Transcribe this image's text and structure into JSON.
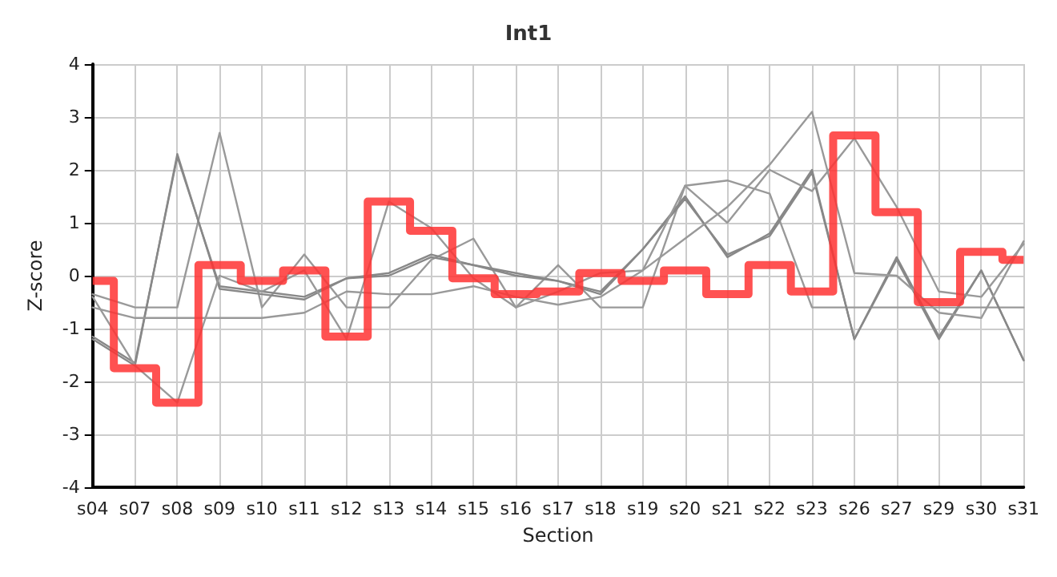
{
  "chart_data": {
    "type": "line",
    "title": "Int1",
    "xlabel": "Section",
    "ylabel": "Z-score",
    "categories": [
      "s04",
      "s07",
      "s08",
      "s09",
      "s10",
      "s11",
      "s12",
      "s13",
      "s14",
      "s15",
      "s16",
      "s17",
      "s18",
      "s19",
      "s20",
      "s21",
      "s22",
      "s23",
      "s26",
      "s27",
      "s29",
      "s30",
      "s31"
    ],
    "series": [
      {
        "color": "#999999",
        "values": [
          -0.35,
          -0.6,
          -0.6,
          2.7,
          -0.6,
          0.4,
          -0.6,
          -0.6,
          0.3,
          0.7,
          -0.6,
          0.2,
          -0.6,
          -0.6,
          1.7,
          1.8,
          1.55,
          -0.6,
          -0.6,
          -0.6,
          -0.6,
          -0.6,
          -0.6
        ]
      },
      {
        "color": "#888888",
        "values": [
          -1.15,
          -1.65,
          2.25,
          -0.2,
          -0.3,
          -0.4,
          -0.05,
          0,
          0.35,
          0.2,
          0,
          -0.1,
          -0.3,
          0.5,
          1.5,
          0.35,
          0.8,
          2,
          -1.2,
          0.35,
          -1.15,
          0.1,
          -1.6
        ]
      },
      {
        "color": "#888888",
        "values": [
          -1.2,
          -1.7,
          2.3,
          -0.25,
          -0.35,
          -0.45,
          -0.05,
          0.05,
          0.4,
          0.2,
          0.05,
          -0.1,
          -0.35,
          0.5,
          1.45,
          0.4,
          0.75,
          1.95,
          -1.2,
          0.3,
          -1.2,
          0.1,
          -1.6
        ]
      },
      {
        "color": "#999999",
        "values": [
          -0.4,
          -1.7,
          -2.4,
          0,
          -0.3,
          0.1,
          -1.2,
          1.4,
          0.9,
          -0.05,
          -0.6,
          -0.3,
          0.05,
          0.1,
          1.7,
          1.0,
          2.0,
          1.6,
          2.6,
          1.3,
          -0.3,
          -0.4,
          0.6
        ]
      },
      {
        "color": "#999999",
        "values": [
          -0.6,
          -0.8,
          -0.8,
          -0.8,
          -0.8,
          -0.7,
          -0.3,
          -0.35,
          -0.35,
          -0.2,
          -0.4,
          -0.55,
          -0.4,
          0.1,
          0.7,
          1.3,
          2.1,
          3.1,
          0.05,
          0,
          -0.7,
          -0.8,
          0.65
        ]
      },
      {
        "type": "step",
        "color": "#ff3333",
        "values": [
          -0.1,
          -1.75,
          -2.4,
          0.2,
          -0.1,
          0.1,
          -1.15,
          1.4,
          0.85,
          -0.05,
          -0.35,
          -0.3,
          0.05,
          -0.1,
          0.1,
          -0.35,
          0.2,
          -0.3,
          2.65,
          1.2,
          -0.5,
          0.45,
          0.3
        ]
      }
    ],
    "ylim": [
      -4,
      4
    ],
    "yticks": [
      -4,
      -3,
      -2,
      -1,
      0,
      1,
      2,
      3,
      4
    ],
    "grid": true,
    "marker": "none",
    "line_style": "solid"
  }
}
